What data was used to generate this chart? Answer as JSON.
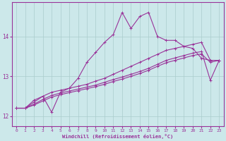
{
  "xlabel": "Windchill (Refroidissement éolien,°C)",
  "bg_color": "#cce8ea",
  "line_color": "#993399",
  "grid_color": "#aacccc",
  "xlim": [
    -0.5,
    23.5
  ],
  "ylim": [
    11.75,
    14.85
  ],
  "yticks": [
    12,
    13,
    14
  ],
  "xticks": [
    0,
    1,
    2,
    3,
    4,
    5,
    6,
    7,
    8,
    9,
    10,
    11,
    12,
    13,
    14,
    15,
    16,
    17,
    18,
    19,
    20,
    21,
    22,
    23
  ],
  "series": [
    {
      "x": [
        0,
        1,
        2,
        3,
        4,
        5,
        6,
        7,
        8,
        9,
        10,
        11,
        12,
        13,
        14,
        15,
        16,
        17,
        18,
        19,
        20,
        21,
        22,
        23
      ],
      "y": [
        12.2,
        12.2,
        12.4,
        12.5,
        12.1,
        12.6,
        12.7,
        12.95,
        13.35,
        13.6,
        13.85,
        14.05,
        14.6,
        14.2,
        14.5,
        14.6,
        14.0,
        13.9,
        13.9,
        13.75,
        13.7,
        13.45,
        13.4,
        13.4
      ]
    },
    {
      "x": [
        0,
        1,
        2,
        3,
        4,
        5,
        6,
        7,
        8,
        9,
        10,
        11,
        12,
        13,
        14,
        15,
        16,
        17,
        18,
        19,
        20,
        21,
        22,
        23
      ],
      "y": [
        12.2,
        12.2,
        12.35,
        12.5,
        12.6,
        12.65,
        12.7,
        12.75,
        12.8,
        12.88,
        12.95,
        13.05,
        13.15,
        13.25,
        13.35,
        13.45,
        13.55,
        13.65,
        13.7,
        13.75,
        13.8,
        13.85,
        13.4,
        13.4
      ]
    },
    {
      "x": [
        0,
        1,
        2,
        3,
        4,
        5,
        6,
        7,
        8,
        9,
        10,
        11,
        12,
        13,
        14,
        15,
        16,
        17,
        18,
        19,
        20,
        21,
        22,
        23
      ],
      "y": [
        12.2,
        12.2,
        12.3,
        12.42,
        12.52,
        12.58,
        12.63,
        12.68,
        12.73,
        12.78,
        12.85,
        12.92,
        12.98,
        13.05,
        13.12,
        13.2,
        13.3,
        13.4,
        13.46,
        13.52,
        13.58,
        13.62,
        12.9,
        13.4
      ]
    },
    {
      "x": [
        0,
        1,
        2,
        3,
        4,
        5,
        6,
        7,
        8,
        9,
        10,
        11,
        12,
        13,
        14,
        15,
        16,
        17,
        18,
        19,
        20,
        21,
        22,
        23
      ],
      "y": [
        12.2,
        12.2,
        12.28,
        12.38,
        12.48,
        12.54,
        12.59,
        12.64,
        12.69,
        12.74,
        12.8,
        12.87,
        12.93,
        13.0,
        13.07,
        13.15,
        13.25,
        13.34,
        13.4,
        13.46,
        13.52,
        13.56,
        13.35,
        13.4
      ]
    }
  ]
}
